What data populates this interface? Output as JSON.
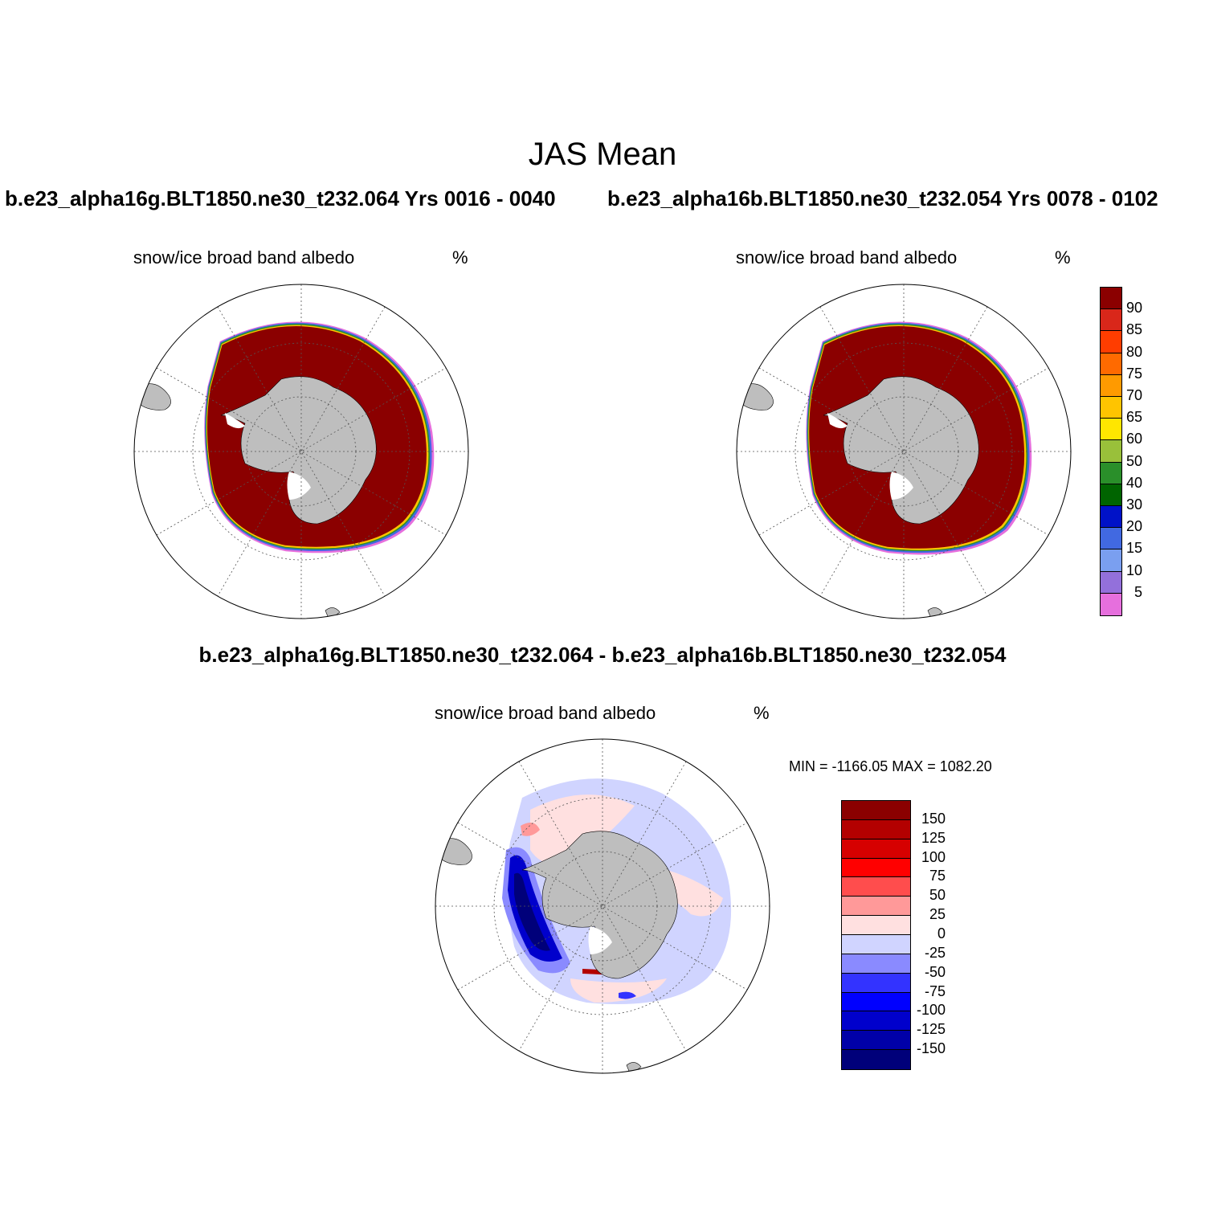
{
  "title": "JAS Mean",
  "case_a_label": "b.e23_alpha16g.BLT1850.ne30_t232.064  Yrs 0016 - 0040",
  "case_b_label": "b.e23_alpha16b.BLT1850.ne30_t232.054  Yrs 0078 - 0102",
  "diff_title": "b.e23_alpha16g.BLT1850.ne30_t232.064 - b.e23_alpha16b.BLT1850.ne30_t232.054",
  "variable": "snow/ice broad band albedo",
  "units": "%",
  "diff_minmax": "MIN = -1166.05 MAX = 1082.20",
  "colors": {
    "land": "#bebebe",
    "ice_core": "#8b0000"
  },
  "abs_colorbar": {
    "labels": [
      "90",
      "85",
      "80",
      "75",
      "70",
      "65",
      "60",
      "50",
      "40",
      "30",
      "20",
      "15",
      "10",
      "5"
    ],
    "colors": [
      "#8b0000",
      "#d9271a",
      "#ff3d00",
      "#ff6a00",
      "#ff9a00",
      "#ffc400",
      "#ffe600",
      "#99c03a",
      "#2a8f2a",
      "#006400",
      "#0012c8",
      "#4169e1",
      "#7a9ff0",
      "#9370db",
      "#e66fdd"
    ]
  },
  "diff_colorbar": {
    "labels": [
      "150",
      "125",
      "100",
      "75",
      "50",
      "25",
      "0",
      "-25",
      "-50",
      "-75",
      "-100",
      "-125",
      "-150"
    ],
    "colors": [
      "#8b0000",
      "#b30000",
      "#d60000",
      "#ff0000",
      "#ff4d4d",
      "#ff9999",
      "#ffe0e0",
      "#d0d4ff",
      "#8a8aff",
      "#3333ff",
      "#0000ff",
      "#0000cc",
      "#0000a8",
      "#00007a"
    ]
  }
}
